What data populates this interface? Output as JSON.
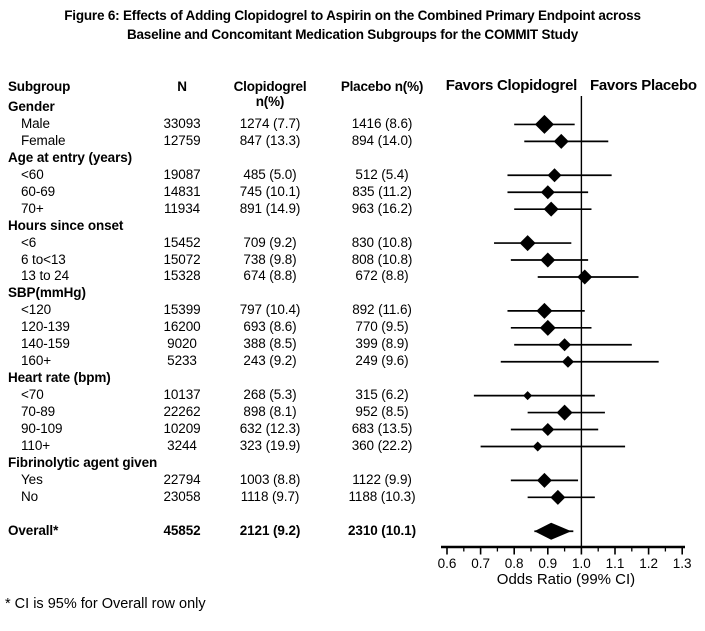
{
  "figure": {
    "title_line1": "Figure 6: Effects of Adding Clopidogrel to Aspirin on the Combined Primary Endpoint across",
    "title_line2": "Baseline and Concomitant Medication Subgroups for the COMMIT Study",
    "footnote": "* CI is 95% for Overall row only"
  },
  "table_headers": {
    "subgroup": "Subgroup",
    "n": "N",
    "clopidogrel": "Clopidogrel n(%)",
    "placebo": "Placebo n(%)"
  },
  "plot_headers": {
    "favors_left": "Favors Clopidogrel",
    "favors_right": "Favors Placebo"
  },
  "colors": {
    "ink": "#000000",
    "background": "#ffffff"
  },
  "chart_data": {
    "type": "forest",
    "x_axis": {
      "label": "Odds Ratio (99% CI)",
      "min": 0.6,
      "max": 1.3,
      "ticks": [
        "0.6",
        "0.7",
        "0.8",
        "0.9",
        "1.0",
        "1.1",
        "1.2",
        "1.3"
      ],
      "minor_tick_step": 0.05,
      "reference_line": 1.0
    },
    "rows": [
      {
        "kind": "group",
        "label": "Gender"
      },
      {
        "kind": "item",
        "label": "Male",
        "n": "33093",
        "clopidogrel": "1274 (7.7)",
        "placebo": "1416 (8.6)",
        "or": 0.89,
        "lo": 0.8,
        "hi": 0.98,
        "size": 19
      },
      {
        "kind": "item",
        "label": "Female",
        "n": "12759",
        "clopidogrel": "847 (13.3)",
        "placebo": "894 (14.0)",
        "or": 0.94,
        "lo": 0.83,
        "hi": 1.08,
        "size": 15
      },
      {
        "kind": "group",
        "label": "Age at entry (years)"
      },
      {
        "kind": "item",
        "label": "<60",
        "n": "19087",
        "clopidogrel": "485 (5.0)",
        "placebo": "512 (5.4)",
        "or": 0.92,
        "lo": 0.78,
        "hi": 1.09,
        "size": 14
      },
      {
        "kind": "item",
        "label": "60-69",
        "n": "14831",
        "clopidogrel": "745 (10.1)",
        "placebo": "835 (11.2)",
        "or": 0.9,
        "lo": 0.78,
        "hi": 1.02,
        "size": 14
      },
      {
        "kind": "item",
        "label": "70+",
        "n": "11934",
        "clopidogrel": "891 (14.9)",
        "placebo": "963 (16.2)",
        "or": 0.91,
        "lo": 0.8,
        "hi": 1.03,
        "size": 15
      },
      {
        "kind": "group",
        "label": "Hours since onset"
      },
      {
        "kind": "item",
        "label": "<6",
        "n": "15452",
        "clopidogrel": "709 (9.2)",
        "placebo": "830 (10.8)",
        "or": 0.84,
        "lo": 0.74,
        "hi": 0.97,
        "size": 16
      },
      {
        "kind": "item",
        "label": "6 to<13",
        "n": "15072",
        "clopidogrel": "738 (9.8)",
        "placebo": "808 (10.8)",
        "or": 0.9,
        "lo": 0.79,
        "hi": 1.02,
        "size": 15
      },
      {
        "kind": "item",
        "label": "13 to 24",
        "n": "15328",
        "clopidogrel": "674 (8.8)",
        "placebo": "672 (8.8)",
        "or": 1.01,
        "lo": 0.87,
        "hi": 1.17,
        "size": 15
      },
      {
        "kind": "group",
        "label": "SBP(mmHg)"
      },
      {
        "kind": "item",
        "label": "<120",
        "n": "15399",
        "clopidogrel": "797 (10.4)",
        "placebo": "892 (11.6)",
        "or": 0.89,
        "lo": 0.78,
        "hi": 1.01,
        "size": 16
      },
      {
        "kind": "item",
        "label": "120-139",
        "n": "16200",
        "clopidogrel": "693 (8.6)",
        "placebo": "770 (9.5)",
        "or": 0.9,
        "lo": 0.79,
        "hi": 1.03,
        "size": 16
      },
      {
        "kind": "item",
        "label": "140-159",
        "n": "9020",
        "clopidogrel": "388 (8.5)",
        "placebo": "399 (8.9)",
        "or": 0.95,
        "lo": 0.8,
        "hi": 1.15,
        "size": 13
      },
      {
        "kind": "item",
        "label": "160+",
        "n": "5233",
        "clopidogrel": "243 (9.2)",
        "placebo": "249 (9.6)",
        "or": 0.96,
        "lo": 0.76,
        "hi": 1.23,
        "size": 12
      },
      {
        "kind": "group",
        "label": "Heart rate (bpm)"
      },
      {
        "kind": "item",
        "label": "<70",
        "n": "10137",
        "clopidogrel": "268 (5.3)",
        "placebo": "315 (6.2)",
        "or": 0.84,
        "lo": 0.68,
        "hi": 1.04,
        "size": 9
      },
      {
        "kind": "item",
        "label": "70-89",
        "n": "22262",
        "clopidogrel": "898 (8.1)",
        "placebo": "952 (8.5)",
        "or": 0.95,
        "lo": 0.84,
        "hi": 1.07,
        "size": 16
      },
      {
        "kind": "item",
        "label": "90-109",
        "n": "10209",
        "clopidogrel": "632 (12.3)",
        "placebo": "683 (13.5)",
        "or": 0.9,
        "lo": 0.79,
        "hi": 1.05,
        "size": 13
      },
      {
        "kind": "item",
        "label": "110+",
        "n": "3244",
        "clopidogrel": "323 (19.9)",
        "placebo": "360 (22.2)",
        "or": 0.87,
        "lo": 0.7,
        "hi": 1.13,
        "size": 10
      },
      {
        "kind": "group",
        "label": "Fibrinolytic agent given"
      },
      {
        "kind": "item",
        "label": "Yes",
        "n": "22794",
        "clopidogrel": "1003 (8.8)",
        "placebo": "1122 (9.9)",
        "or": 0.89,
        "lo": 0.79,
        "hi": 0.99,
        "size": 15
      },
      {
        "kind": "item",
        "label": "No",
        "n": "23058",
        "clopidogrel": "1118 (9.7)",
        "placebo": "1188 (10.3)",
        "or": 0.93,
        "lo": 0.84,
        "hi": 1.04,
        "size": 15
      },
      {
        "kind": "overall",
        "label": "Overall*",
        "n": "45852",
        "clopidogrel": "2121 (9.2)",
        "placebo": "2310 (10.1)",
        "or": 0.91,
        "lo": 0.86,
        "hi": 0.97,
        "gap_before": 1
      }
    ]
  }
}
